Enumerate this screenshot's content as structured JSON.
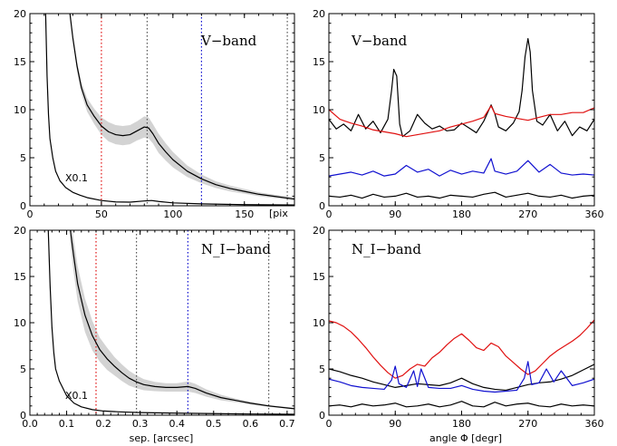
{
  "colors": {
    "black": "#000000",
    "red": "#e01010",
    "blue": "#1010d0",
    "gray_band": "#d3d3d3",
    "dotted_gray": "#555555"
  },
  "chart_data": [
    {
      "id": "vband_radial",
      "type": "line",
      "band_label": "V−band",
      "annotation": "X0.1",
      "x_unit_label": "[pix",
      "xlabel": "",
      "xlim": [
        0,
        185
      ],
      "ylim": [
        0,
        20
      ],
      "xticks": [
        0,
        50,
        100,
        150
      ],
      "yticks": [
        0,
        5,
        10,
        15,
        20
      ],
      "vlines": [
        {
          "x": 50,
          "color": "red"
        },
        {
          "x": 82,
          "color": "dotted_gray"
        },
        {
          "x": 120,
          "color": "blue"
        },
        {
          "x": 180,
          "color": "dotted_gray"
        }
      ],
      "series": [
        {
          "style": "upper",
          "x": [
            28,
            30,
            33,
            36,
            40,
            45,
            50,
            55,
            60,
            65,
            70,
            75,
            80,
            83,
            86,
            90,
            95,
            100,
            110,
            120,
            130,
            140,
            150,
            160,
            170,
            185
          ],
          "y": [
            20,
            17.5,
            14.5,
            12.3,
            10.5,
            9.3,
            8.3,
            7.7,
            7.4,
            7.3,
            7.4,
            7.8,
            8.2,
            8.1,
            7.5,
            6.5,
            5.6,
            4.8,
            3.6,
            2.8,
            2.2,
            1.8,
            1.5,
            1.2,
            1.0,
            0.7
          ],
          "err": [
            0.3,
            0.4,
            0.5,
            0.6,
            0.7,
            0.8,
            0.9,
            1.0,
            1.0,
            1.0,
            1.0,
            1.0,
            1.1,
            1.1,
            1.0,
            1.0,
            0.9,
            0.8,
            0.6,
            0.45,
            0.35,
            0.3,
            0.25,
            0.2,
            0.18,
            0.15
          ]
        },
        {
          "style": "lower",
          "x": [
            11,
            12,
            13,
            14,
            16,
            18,
            21,
            25,
            30,
            35,
            40,
            50,
            60,
            70,
            80,
            85,
            90,
            100,
            120,
            150,
            185
          ],
          "y": [
            20,
            13.5,
            9.5,
            7,
            5,
            3.6,
            2.6,
            1.9,
            1.4,
            1.1,
            0.85,
            0.55,
            0.4,
            0.38,
            0.5,
            0.55,
            0.45,
            0.3,
            0.2,
            0.12,
            0.08
          ],
          "err": []
        }
      ]
    },
    {
      "id": "vband_azimuthal",
      "type": "line",
      "band_label": "V−band",
      "xlabel": "",
      "xlim": [
        0,
        360
      ],
      "ylim": [
        0,
        20
      ],
      "xticks": [
        0,
        90,
        180,
        270,
        360
      ],
      "yticks": [
        0,
        5,
        10,
        15,
        20
      ],
      "series": [
        {
          "color": "black",
          "x": [
            0,
            10,
            20,
            30,
            40,
            50,
            60,
            70,
            80,
            85,
            88,
            92,
            96,
            100,
            110,
            120,
            130,
            140,
            150,
            160,
            170,
            180,
            190,
            200,
            210,
            220,
            225,
            230,
            240,
            250,
            258,
            262,
            266,
            270,
            273,
            276,
            282,
            290,
            300,
            310,
            320,
            330,
            340,
            350,
            360
          ],
          "y": [
            9,
            8,
            8.5,
            7.8,
            9.5,
            8,
            8.8,
            7.6,
            9,
            12,
            14.2,
            13.5,
            8.5,
            7.2,
            7.8,
            9.5,
            8.6,
            8,
            8.3,
            7.8,
            7.9,
            8.6,
            8.1,
            7.6,
            8.8,
            10.5,
            9.6,
            8.2,
            7.8,
            8.6,
            9.8,
            12,
            15.5,
            17.4,
            16,
            12,
            8.8,
            8.4,
            9.5,
            7.8,
            8.8,
            7.3,
            8.2,
            7.8,
            9
          ]
        },
        {
          "color": "red",
          "x": [
            0,
            15,
            30,
            45,
            60,
            75,
            90,
            105,
            120,
            135,
            150,
            165,
            180,
            195,
            210,
            220,
            225,
            240,
            255,
            270,
            285,
            300,
            315,
            330,
            345,
            360
          ],
          "y": [
            10,
            9,
            8.6,
            8.3,
            7.9,
            7.7,
            7.5,
            7.2,
            7.4,
            7.6,
            7.8,
            8.2,
            8.5,
            8.8,
            9.2,
            10.4,
            9.6,
            9.3,
            9.1,
            8.9,
            9.2,
            9.5,
            9.5,
            9.7,
            9.7,
            10.2
          ]
        },
        {
          "color": "blue",
          "x": [
            0,
            15,
            30,
            45,
            60,
            75,
            90,
            105,
            120,
            135,
            150,
            165,
            180,
            195,
            210,
            220,
            225,
            240,
            255,
            270,
            285,
            300,
            315,
            330,
            345,
            360
          ],
          "y": [
            3.1,
            3.3,
            3.5,
            3.2,
            3.6,
            3.1,
            3.3,
            4.2,
            3.5,
            3.8,
            3.1,
            3.7,
            3.3,
            3.6,
            3.4,
            4.9,
            3.6,
            3.3,
            3.6,
            4.7,
            3.5,
            4.3,
            3.4,
            3.2,
            3.3,
            3.2
          ]
        },
        {
          "color": "black",
          "x": [
            0,
            15,
            30,
            45,
            60,
            75,
            90,
            105,
            120,
            135,
            150,
            165,
            180,
            195,
            210,
            225,
            240,
            255,
            270,
            285,
            300,
            315,
            330,
            345,
            360
          ],
          "y": [
            1.0,
            0.9,
            1.1,
            0.8,
            1.2,
            0.9,
            1.0,
            1.3,
            0.9,
            1.0,
            0.8,
            1.1,
            1.0,
            0.9,
            1.2,
            1.4,
            0.9,
            1.1,
            1.3,
            1.0,
            0.9,
            1.1,
            0.8,
            1.0,
            1.1
          ]
        }
      ]
    },
    {
      "id": "nband_radial",
      "type": "line",
      "band_label": "N_I−band",
      "annotation": "X0.1",
      "xlabel": "sep. [arcsec]",
      "xlim": [
        0,
        0.72
      ],
      "ylim": [
        0,
        20
      ],
      "xticks": [
        0.0,
        0.1,
        0.2,
        0.3,
        0.4,
        0.5,
        0.6,
        0.7
      ],
      "xtick_labels": [
        "0.0",
        "0.1",
        "0.2",
        "0.3",
        "0.4",
        "0.5",
        "0.6",
        "0.7"
      ],
      "yticks": [
        0,
        5,
        10,
        15,
        20
      ],
      "vlines": [
        {
          "x": 0.18,
          "color": "red"
        },
        {
          "x": 0.29,
          "color": "dotted_gray"
        },
        {
          "x": 0.43,
          "color": "blue"
        },
        {
          "x": 0.65,
          "color": "dotted_gray"
        }
      ],
      "series": [
        {
          "style": "upper",
          "x": [
            0.11,
            0.12,
            0.13,
            0.15,
            0.17,
            0.19,
            0.21,
            0.23,
            0.25,
            0.27,
            0.29,
            0.31,
            0.34,
            0.37,
            0.4,
            0.43,
            0.45,
            0.48,
            0.52,
            0.56,
            0.6,
            0.65,
            0.72
          ],
          "y": [
            20,
            17,
            14.2,
            10.8,
            8.6,
            7.1,
            6.1,
            5.3,
            4.6,
            4.0,
            3.6,
            3.3,
            3.1,
            3.0,
            3.0,
            3.1,
            2.9,
            2.4,
            1.9,
            1.6,
            1.3,
            1.0,
            0.7
          ],
          "err": [
            1.5,
            1.8,
            1.9,
            1.8,
            1.6,
            1.3,
            1.2,
            1.0,
            0.9,
            0.8,
            0.7,
            0.6,
            0.5,
            0.45,
            0.45,
            0.55,
            0.5,
            0.4,
            0.3,
            0.2,
            0.15,
            0.1,
            0.08
          ]
        },
        {
          "style": "lower",
          "x": [
            0.05,
            0.055,
            0.06,
            0.065,
            0.07,
            0.08,
            0.09,
            0.1,
            0.12,
            0.14,
            0.17,
            0.2,
            0.25,
            0.3,
            0.4,
            0.5,
            0.6,
            0.72
          ],
          "y": [
            20,
            14,
            9.5,
            6.8,
            5.0,
            3.7,
            2.9,
            2.1,
            1.3,
            0.9,
            0.6,
            0.45,
            0.35,
            0.28,
            0.22,
            0.17,
            0.13,
            0.1
          ],
          "err": []
        }
      ]
    },
    {
      "id": "nband_azimuthal",
      "type": "line",
      "band_label": "N_I−band",
      "xlabel": "angle Φ [degr]",
      "xlim": [
        0,
        360
      ],
      "ylim": [
        0,
        20
      ],
      "xticks": [
        0,
        90,
        180,
        270,
        360
      ],
      "yticks": [
        0,
        5,
        10,
        15,
        20
      ],
      "series": [
        {
          "color": "red",
          "x": [
            0,
            10,
            20,
            30,
            40,
            50,
            60,
            70,
            80,
            90,
            100,
            110,
            120,
            130,
            140,
            150,
            160,
            170,
            180,
            190,
            200,
            210,
            220,
            230,
            240,
            250,
            260,
            270,
            280,
            290,
            300,
            310,
            320,
            330,
            340,
            350,
            360
          ],
          "y": [
            10.2,
            10,
            9.6,
            9.0,
            8.2,
            7.3,
            6.3,
            5.4,
            4.6,
            4.0,
            4.3,
            5.0,
            5.5,
            5.3,
            6.2,
            6.8,
            7.6,
            8.3,
            8.8,
            8.1,
            7.3,
            7.0,
            7.8,
            7.4,
            6.4,
            5.7,
            5.0,
            4.4,
            4.8,
            5.6,
            6.4,
            7.0,
            7.5,
            8.0,
            8.6,
            9.4,
            10.3
          ]
        },
        {
          "color": "black",
          "x": [
            0,
            15,
            30,
            45,
            60,
            75,
            90,
            105,
            120,
            135,
            150,
            165,
            180,
            195,
            210,
            225,
            240,
            255,
            270,
            285,
            300,
            315,
            330,
            345,
            360
          ],
          "y": [
            5.0,
            4.7,
            4.3,
            4.0,
            3.6,
            3.3,
            3.0,
            3.2,
            3.4,
            3.3,
            3.2,
            3.5,
            4.0,
            3.4,
            3.0,
            2.8,
            2.7,
            3.0,
            3.3,
            3.5,
            3.6,
            3.9,
            4.3,
            4.9,
            5.5
          ]
        },
        {
          "color": "blue",
          "x": [
            0,
            15,
            30,
            45,
            60,
            75,
            85,
            90,
            95,
            105,
            115,
            120,
            125,
            135,
            150,
            165,
            180,
            195,
            210,
            225,
            240,
            255,
            265,
            270,
            275,
            285,
            295,
            305,
            315,
            330,
            345,
            360
          ],
          "y": [
            3.9,
            3.6,
            3.2,
            3.0,
            2.9,
            2.8,
            3.8,
            5.3,
            3.4,
            3.0,
            4.8,
            3.1,
            5.0,
            3.0,
            2.9,
            2.9,
            3.2,
            2.8,
            2.6,
            2.5,
            2.6,
            2.7,
            4.0,
            5.8,
            3.3,
            3.5,
            5.0,
            3.6,
            4.8,
            3.2,
            3.5,
            3.9
          ]
        },
        {
          "color": "black",
          "x": [
            0,
            15,
            30,
            45,
            60,
            75,
            90,
            105,
            120,
            135,
            150,
            165,
            180,
            195,
            210,
            225,
            240,
            255,
            270,
            285,
            300,
            315,
            330,
            345,
            360
          ],
          "y": [
            1.0,
            1.1,
            0.9,
            1.2,
            1.0,
            1.1,
            1.3,
            0.9,
            1.0,
            1.2,
            0.9,
            1.1,
            1.5,
            1.0,
            0.9,
            1.4,
            1.0,
            1.2,
            1.3,
            1.0,
            0.9,
            1.2,
            1.0,
            1.1,
            1.0
          ]
        }
      ]
    }
  ]
}
